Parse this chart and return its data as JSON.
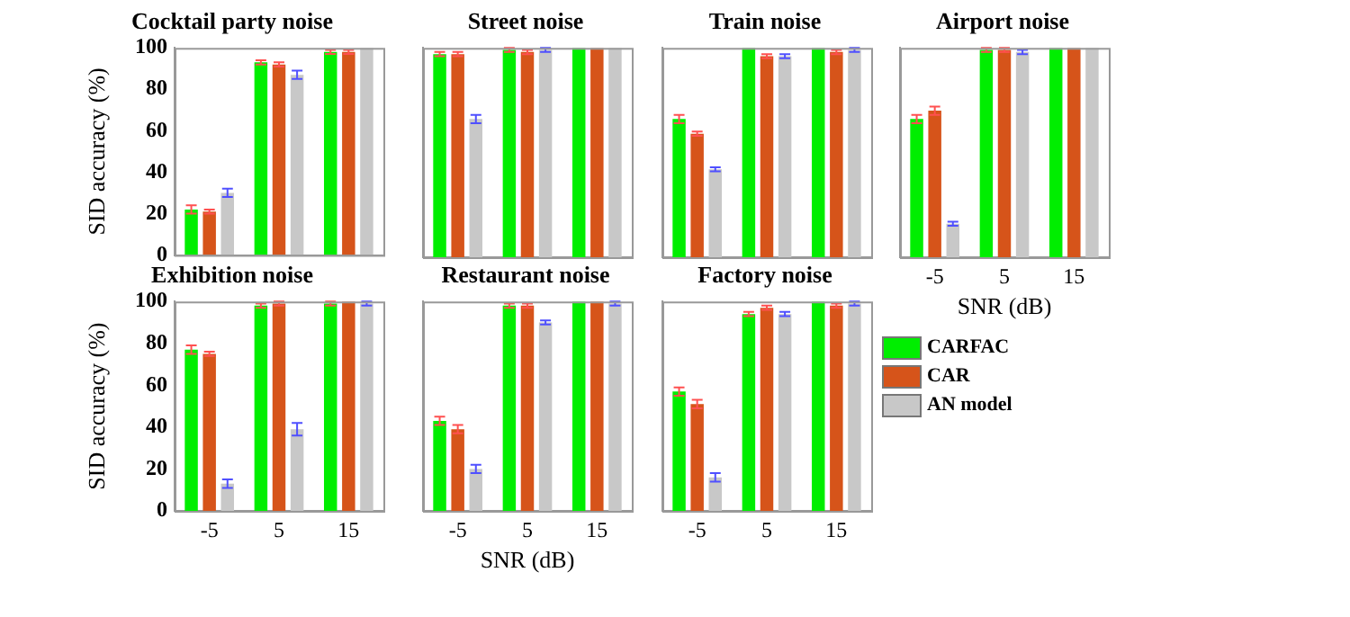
{
  "chart_data": [
    {
      "type": "bar",
      "title": "Cocktail party noise",
      "ylabel": "SID accuracy (%)",
      "categories": [
        "-5",
        "5",
        "15"
      ],
      "ylim": [
        0,
        100
      ],
      "yticks": [
        0,
        20,
        40,
        60,
        80,
        100
      ],
      "tick_labels": "y",
      "legend": false,
      "grid": false,
      "series": [
        {
          "color": "#00ee00",
          "values": [
            22,
            93,
            98
          ],
          "errors": [
            2,
            1,
            1
          ]
        },
        {
          "color": "#d6541a",
          "values": [
            21,
            92,
            98
          ],
          "errors": [
            1,
            1,
            1
          ]
        },
        {
          "color": "#c8c8c8",
          "values": [
            30,
            87,
            100
          ],
          "errors": [
            2,
            2,
            null
          ]
        }
      ]
    },
    {
      "type": "bar",
      "title": "Street noise",
      "categories": [
        "-5",
        "5",
        "15"
      ],
      "ylim": [
        0,
        100
      ],
      "yticks": [
        0,
        20,
        40,
        60,
        80,
        100
      ],
      "tick_labels": false,
      "legend": false,
      "grid": false,
      "series": [
        {
          "color": "#00ee00",
          "values": [
            97,
            99,
            100
          ],
          "errors": [
            1,
            1,
            null
          ]
        },
        {
          "color": "#d6541a",
          "values": [
            97,
            98,
            100
          ],
          "errors": [
            1,
            1,
            null
          ]
        },
        {
          "color": "#c8c8c8",
          "values": [
            66,
            99,
            100
          ],
          "errors": [
            2,
            1,
            null
          ]
        }
      ]
    },
    {
      "type": "bar",
      "title": "Train noise",
      "categories": [
        "-5",
        "5",
        "15"
      ],
      "ylim": [
        0,
        100
      ],
      "yticks": [
        0,
        20,
        40,
        60,
        80,
        100
      ],
      "tick_labels": false,
      "legend": false,
      "grid": false,
      "series": [
        {
          "color": "#00ee00",
          "values": [
            66,
            100,
            100
          ],
          "errors": [
            2,
            null,
            null
          ]
        },
        {
          "color": "#d6541a",
          "values": [
            59,
            96,
            98
          ],
          "errors": [
            1,
            1,
            1
          ]
        },
        {
          "color": "#c8c8c8",
          "values": [
            42,
            96,
            99
          ],
          "errors": [
            1,
            1,
            1
          ]
        }
      ]
    },
    {
      "type": "bar",
      "title": "Airport noise",
      "xlabel": "SNR (dB)",
      "categories": [
        "-5",
        "5",
        "15"
      ],
      "ylim": [
        0,
        100
      ],
      "yticks": [
        0,
        20,
        40,
        60,
        80,
        100
      ],
      "tick_labels": "x",
      "legend": false,
      "grid": false,
      "series": [
        {
          "color": "#00ee00",
          "values": [
            66,
            99,
            100
          ],
          "errors": [
            2,
            1,
            null
          ]
        },
        {
          "color": "#d6541a",
          "values": [
            70,
            99,
            100
          ],
          "errors": [
            2,
            1,
            null
          ]
        },
        {
          "color": "#c8c8c8",
          "values": [
            16,
            98,
            100
          ],
          "errors": [
            1,
            1,
            null
          ]
        }
      ]
    },
    {
      "type": "bar",
      "title": "Exhibition noise",
      "ylabel": "SID accuracy (%)",
      "categories": [
        "-5",
        "5",
        "15"
      ],
      "ylim": [
        0,
        100
      ],
      "yticks": [
        0,
        20,
        40,
        60,
        80,
        100
      ],
      "legend": false,
      "grid": false,
      "series": [
        {
          "color": "#00ee00",
          "values": [
            77,
            98,
            99
          ],
          "errors": [
            2,
            1,
            1
          ]
        },
        {
          "color": "#d6541a",
          "values": [
            75,
            99,
            100
          ],
          "errors": [
            1,
            1,
            null
          ]
        },
        {
          "color": "#c8c8c8",
          "values": [
            13,
            39,
            99
          ],
          "errors": [
            2,
            3,
            1
          ]
        }
      ]
    },
    {
      "type": "bar",
      "title": "Restaurant noise",
      "xlabel": "SNR (dB)",
      "categories": [
        "-5",
        "5",
        "15"
      ],
      "ylim": [
        0,
        100
      ],
      "yticks": [
        0,
        20,
        40,
        60,
        80,
        100
      ],
      "tick_labels": "x",
      "legend": false,
      "grid": false,
      "series": [
        {
          "color": "#00ee00",
          "values": [
            43,
            98,
            100
          ],
          "errors": [
            2,
            1,
            null
          ]
        },
        {
          "color": "#d6541a",
          "values": [
            39,
            98,
            100
          ],
          "errors": [
            2,
            1,
            null
          ]
        },
        {
          "color": "#c8c8c8",
          "values": [
            20,
            90,
            99
          ],
          "errors": [
            2,
            1,
            1
          ]
        }
      ]
    },
    {
      "type": "bar",
      "title": "Factory noise",
      "categories": [
        "-5",
        "5",
        "15"
      ],
      "ylim": [
        0,
        100
      ],
      "yticks": [
        0,
        20,
        40,
        60,
        80,
        100
      ],
      "tick_labels": "x",
      "legend": "right",
      "grid": false,
      "series": [
        {
          "name": "CARFAC",
          "color": "#00ee00",
          "values": [
            57,
            94,
            100
          ],
          "errors": [
            2,
            1,
            null
          ]
        },
        {
          "name": "CAR",
          "color": "#d6541a",
          "values": [
            51,
            97,
            98
          ],
          "errors": [
            2,
            1,
            1
          ]
        },
        {
          "name": "AN model",
          "color": "#c8c8c8",
          "values": [
            16,
            94,
            99
          ],
          "errors": [
            2,
            1,
            1
          ]
        }
      ]
    }
  ]
}
